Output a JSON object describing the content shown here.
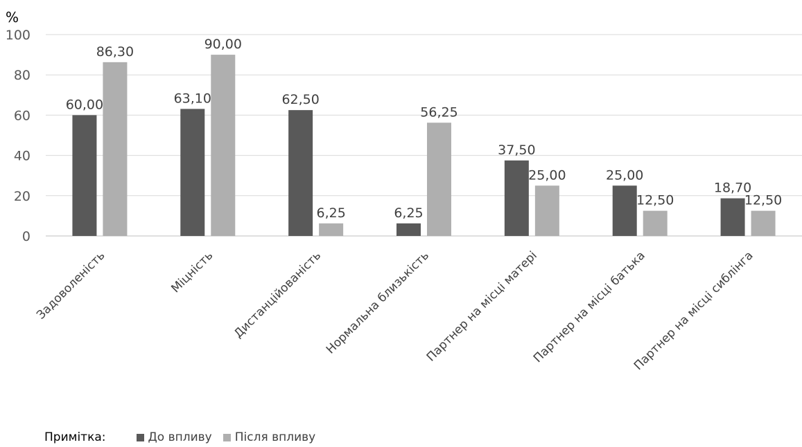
{
  "chart_data": {
    "type": "bar",
    "ylabel": "%",
    "ylim": [
      0,
      100
    ],
    "yticks": [
      0,
      20,
      40,
      60,
      80,
      100
    ],
    "grid": true,
    "categories": [
      "Задоволеність",
      "Міцність",
      "Дистанційованість",
      "Нормальна близькість",
      "Партнер на місці матері",
      "Партнер на місці батька",
      "Партнер на місці сиблінга"
    ],
    "series": [
      {
        "name": "До впливу",
        "color": "#595959",
        "values": [
          60.0,
          63.1,
          62.5,
          6.25,
          37.5,
          25.0,
          18.7
        ],
        "labels": [
          "60,00",
          "63,10",
          "62,50",
          "6,25",
          "37,50",
          "25,00",
          "18,70"
        ]
      },
      {
        "name": "Після впливу",
        "color": "#afafaf",
        "values": [
          86.3,
          90.0,
          6.25,
          56.25,
          25.0,
          12.5,
          12.5
        ],
        "labels": [
          "86,30",
          "90,00",
          "6,25",
          "56,25",
          "25,00",
          "12,50",
          "12,50"
        ]
      }
    ],
    "legend_position": "bottom-left",
    "note_label": "Примітка:"
  }
}
